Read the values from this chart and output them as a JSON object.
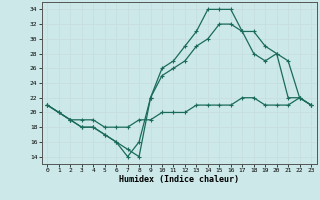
{
  "xlabel": "Humidex (Indice chaleur)",
  "xlim": [
    -0.5,
    23.5
  ],
  "ylim": [
    13,
    35
  ],
  "yticks": [
    14,
    16,
    18,
    20,
    22,
    24,
    26,
    28,
    30,
    32,
    34
  ],
  "xticks": [
    0,
    1,
    2,
    3,
    4,
    5,
    6,
    7,
    8,
    9,
    10,
    11,
    12,
    13,
    14,
    15,
    16,
    17,
    18,
    19,
    20,
    21,
    22,
    23
  ],
  "bg_color": "#cce8e8",
  "grid_color": "#b0d0d0",
  "line_color": "#1a6b5a",
  "line1_x": [
    0,
    1,
    2,
    3,
    4,
    5,
    6,
    7,
    8,
    9,
    10,
    11,
    12,
    13,
    14,
    15,
    16,
    17,
    18,
    19,
    20,
    21,
    22,
    23
  ],
  "line1_y": [
    21,
    20,
    19,
    19,
    19,
    18,
    18,
    18,
    19,
    19,
    20,
    20,
    20,
    21,
    21,
    21,
    21,
    22,
    22,
    21,
    21,
    21,
    22,
    21
  ],
  "line2_x": [
    0,
    1,
    2,
    3,
    4,
    5,
    6,
    7,
    8,
    9,
    10,
    11,
    12,
    13,
    14,
    15,
    16,
    17,
    18,
    19,
    20,
    21,
    22,
    23
  ],
  "line2_y": [
    21,
    20,
    19,
    18,
    18,
    17,
    16,
    14,
    16,
    22,
    25,
    26,
    27,
    29,
    30,
    32,
    32,
    31,
    28,
    27,
    28,
    22,
    22,
    21
  ],
  "line3_x": [
    0,
    2,
    3,
    4,
    5,
    6,
    7,
    8,
    9,
    10,
    11,
    12,
    13,
    14,
    15,
    16,
    17,
    18,
    19,
    20,
    21,
    22,
    23
  ],
  "line3_y": [
    21,
    19,
    18,
    18,
    17,
    16,
    15,
    14,
    22,
    26,
    27,
    29,
    31,
    34,
    34,
    34,
    31,
    31,
    29,
    28,
    27,
    22,
    21
  ]
}
